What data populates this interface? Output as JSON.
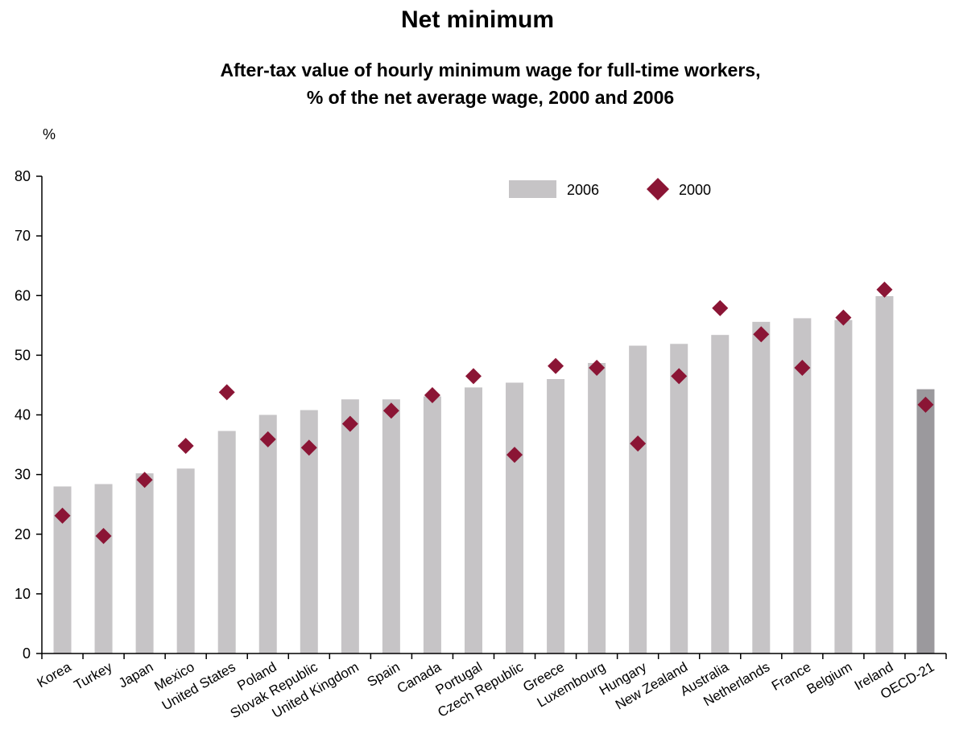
{
  "title": "Net minimum",
  "subtitle_line1": "After-tax value of hourly minimum wage for full-time workers,",
  "subtitle_line2": "% of the net average wage, 2000 and 2006",
  "colors": {
    "bar_2006": "#c6c4c6",
    "bar_oecd": "#9b999d",
    "marker_2000": "#8b1535"
  },
  "chart_data": {
    "type": "bar",
    "title": "Net minimum",
    "subtitle": "After-tax value of hourly minimum wage for full-time workers, % of the net average wage, 2000 and 2006",
    "ylabel": "%",
    "xlabel": "",
    "ylim": [
      0,
      80
    ],
    "yticks": [
      0,
      10,
      20,
      30,
      40,
      50,
      60,
      70,
      80
    ],
    "legend_position": "top-right",
    "categories": [
      "Korea",
      "Turkey",
      "Japan",
      "Mexico",
      "United States",
      "Poland",
      "Slovak Republic",
      "United Kingdom",
      "Spain",
      "Canada",
      "Portugal",
      "Czech Republic",
      "Greece",
      "Luxembourg",
      "Hungary",
      "New Zealand",
      "Australia",
      "Netherlands",
      "France",
      "Belgium",
      "Ireland",
      "OECD-21"
    ],
    "series": [
      {
        "name": "2006",
        "kind": "bar",
        "values": [
          28.0,
          28.4,
          30.2,
          31.0,
          37.3,
          40.0,
          40.8,
          42.6,
          42.6,
          43.1,
          44.6,
          45.4,
          46.0,
          48.7,
          51.6,
          51.9,
          53.4,
          55.6,
          56.2,
          55.9,
          59.9,
          44.3
        ]
      },
      {
        "name": "2000",
        "kind": "marker",
        "values": [
          23.1,
          19.7,
          29.1,
          34.8,
          43.8,
          35.9,
          34.5,
          38.5,
          40.7,
          43.3,
          46.5,
          33.3,
          48.2,
          47.9,
          35.2,
          46.5,
          57.9,
          53.5,
          47.9,
          56.3,
          61.0,
          41.7
        ]
      }
    ]
  }
}
